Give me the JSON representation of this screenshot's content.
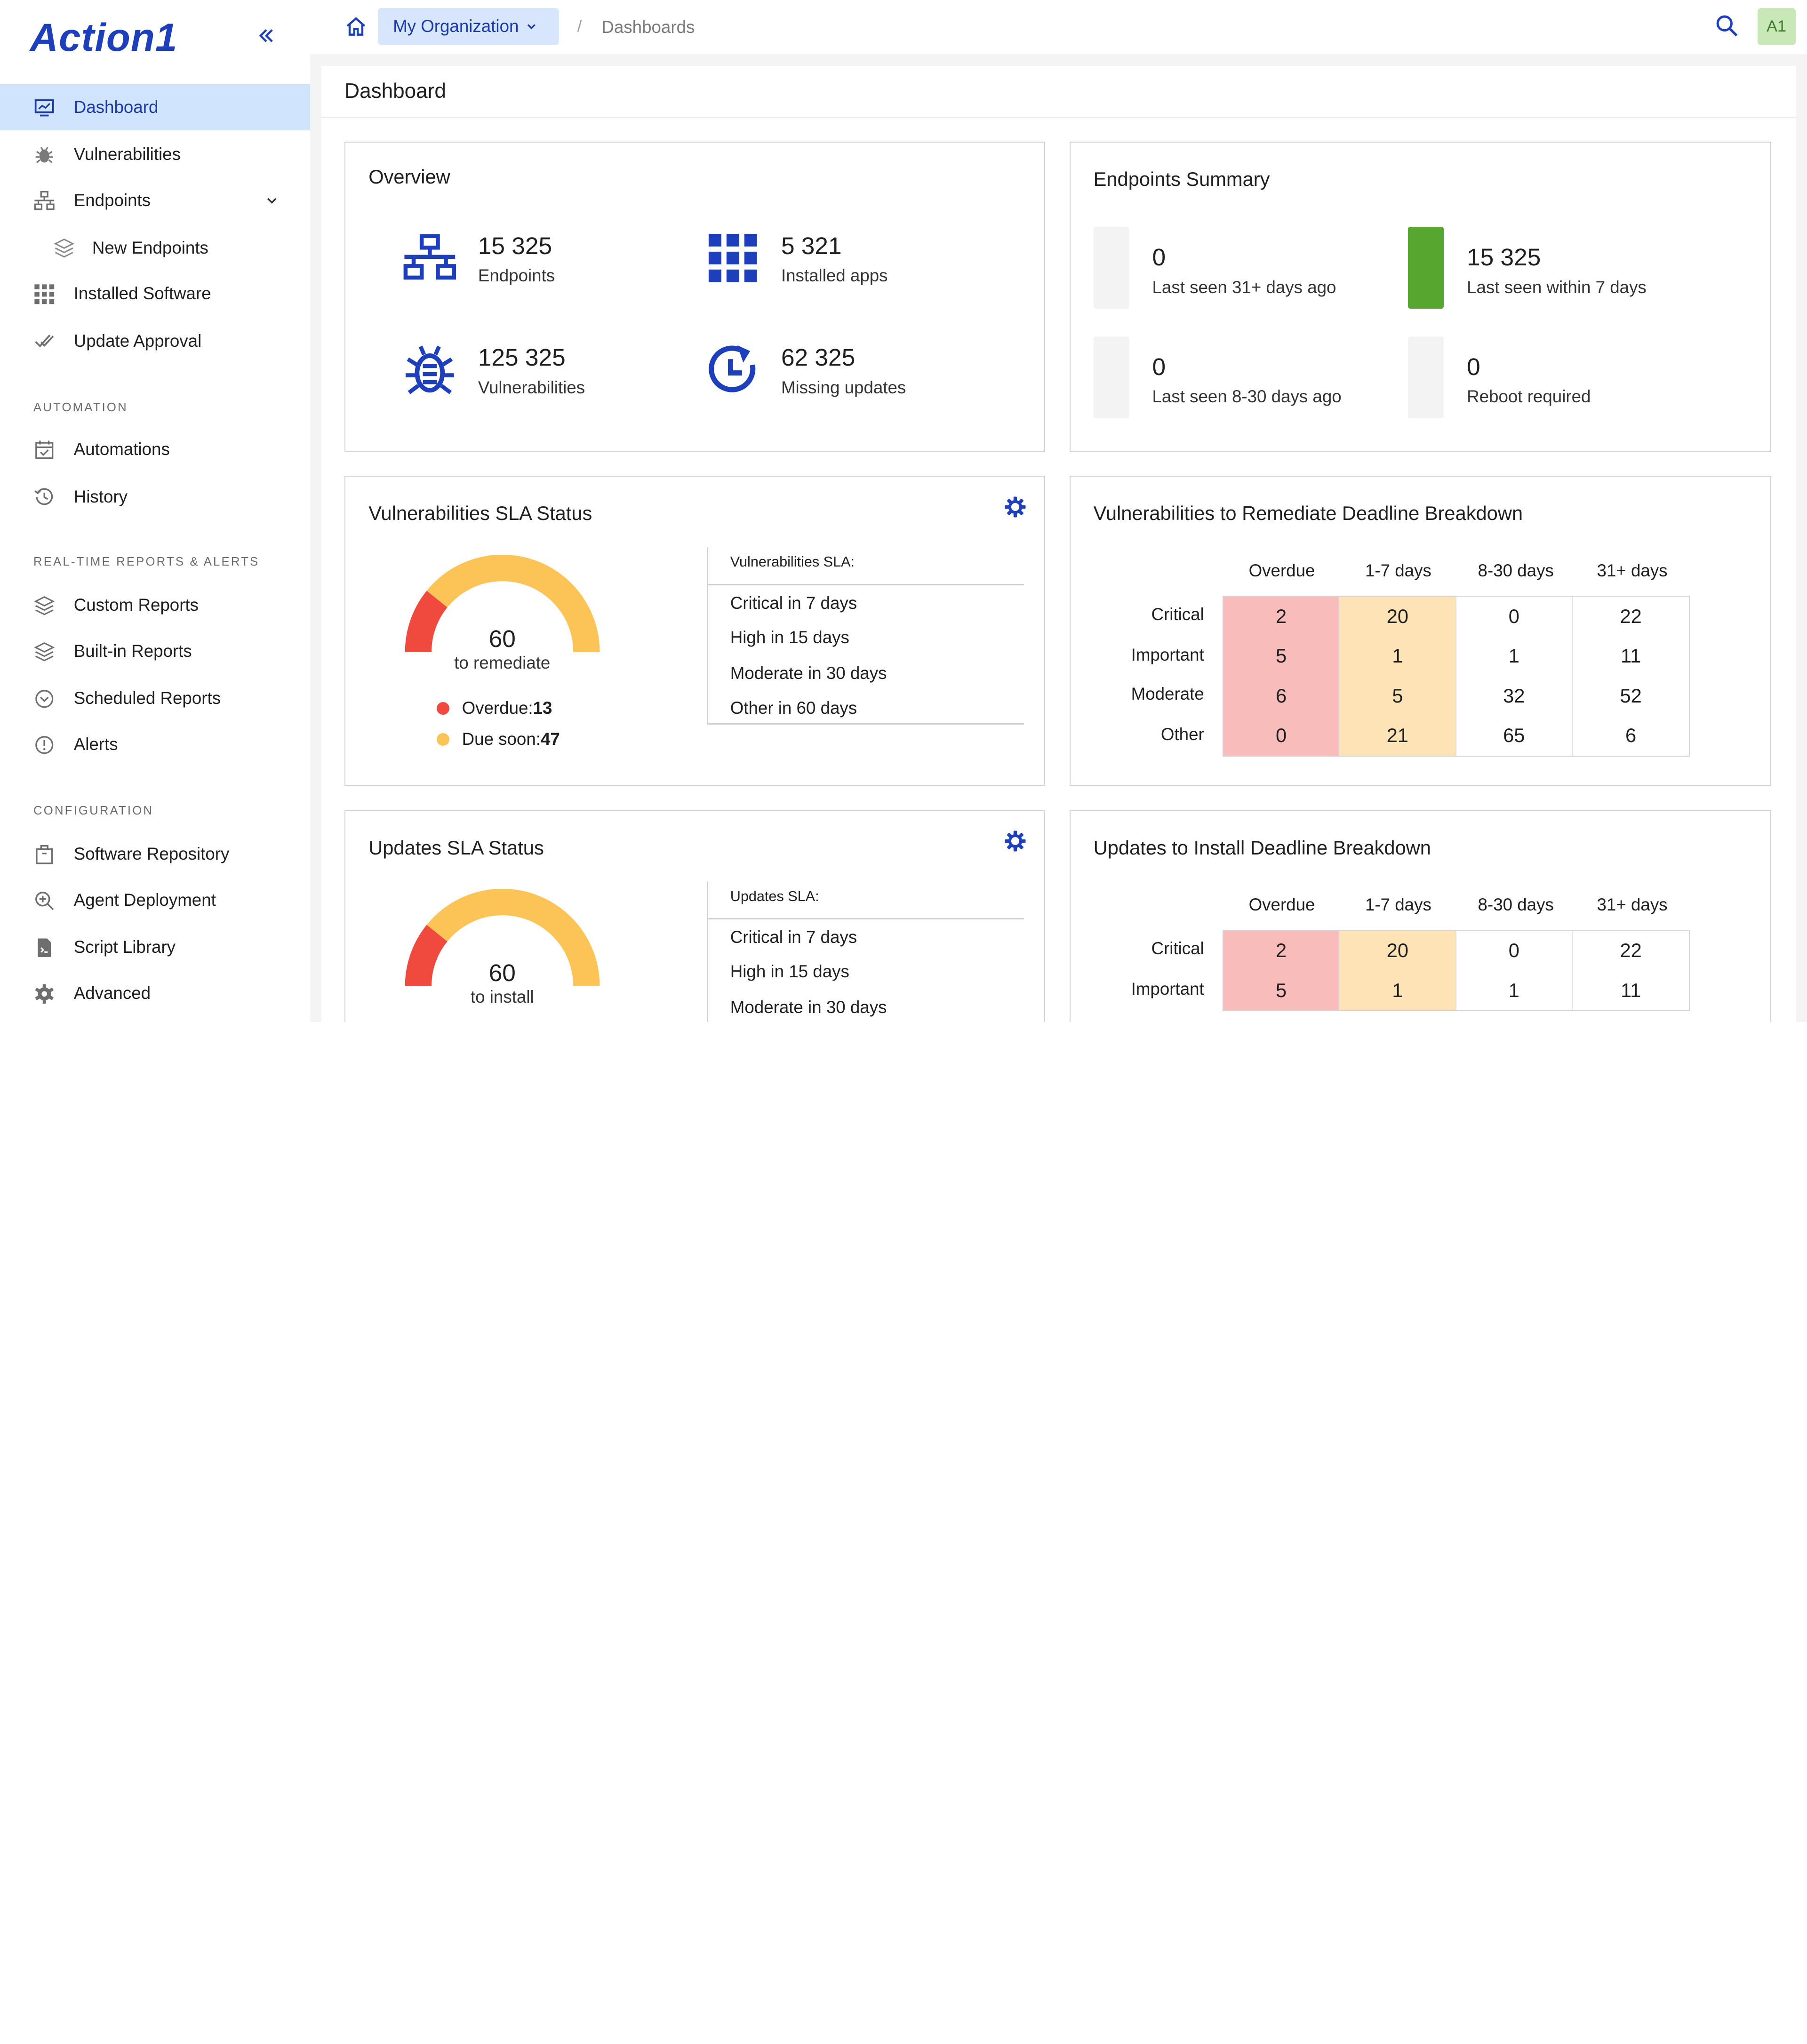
{
  "app": {
    "logo": "Action1"
  },
  "sidebar": {
    "items": [
      {
        "label": "Dashboard",
        "icon": "monitor-icon"
      },
      {
        "label": "Vulnerabilities",
        "icon": "bug-icon"
      },
      {
        "label": "Endpoints",
        "icon": "network-icon"
      },
      {
        "label": "New Endpoints",
        "icon": "layers-icon"
      },
      {
        "label": "Installed Software",
        "icon": "grid-icon"
      },
      {
        "label": "Update Approval",
        "icon": "double-check-icon"
      }
    ],
    "sections": [
      {
        "title": "AUTOMATION",
        "items": [
          {
            "label": "Automations",
            "icon": "calendar-check-icon"
          },
          {
            "label": "History",
            "icon": "history-icon"
          }
        ]
      },
      {
        "title": "REAL-TIME REPORTS & ALERTS",
        "items": [
          {
            "label": "Custom Reports",
            "icon": "layers-icon"
          },
          {
            "label": "Built-in Reports",
            "icon": "layers-icon"
          },
          {
            "label": "Scheduled Reports",
            "icon": "clock-circle-icon"
          },
          {
            "label": "Alerts",
            "icon": "alert-circle-icon"
          }
        ]
      },
      {
        "title": "CONFIGURATION",
        "items": [
          {
            "label": "Software Repository",
            "icon": "package-icon"
          },
          {
            "label": "Agent Deployment",
            "icon": "zoom-plus-icon"
          },
          {
            "label": "Script Library",
            "icon": "script-file-icon"
          },
          {
            "label": "Advanced",
            "icon": "gear-icon"
          }
        ]
      }
    ]
  },
  "topbar": {
    "org": "My Organization",
    "breadcrumb_sep": "/",
    "breadcrumb": "Dashboards",
    "avatar": "A1"
  },
  "page": {
    "title": "Dashboard"
  },
  "overview": {
    "title": "Overview",
    "items": [
      {
        "value": "15 325",
        "label": "Endpoints",
        "icon": "network-icon"
      },
      {
        "value": "5 321",
        "label": "Installed apps",
        "icon": "grid-icon"
      },
      {
        "value": "125 325",
        "label": "Vulnerabilities",
        "icon": "bug-icon"
      },
      {
        "value": "62 325",
        "label": "Missing updates",
        "icon": "clock-refresh-icon"
      }
    ]
  },
  "endpoints_summary": {
    "title": "Endpoints Summary",
    "items": [
      {
        "value": "0",
        "label": "Last seen 31+ days ago"
      },
      {
        "value": "15 325",
        "label": "Last seen within 7 days"
      },
      {
        "value": "0",
        "label": "Last seen 8-30 days ago"
      },
      {
        "value": "0",
        "label": "Reboot required"
      }
    ]
  },
  "vuln_sla": {
    "title": "Vulnerabilities SLA Status",
    "gauge_value": "60",
    "gauge_label": "to remediate",
    "overdue_fraction": 0.2167,
    "legend": [
      {
        "label": "Overdue:",
        "value": "13",
        "color": "#f04a3e"
      },
      {
        "label": "Due soon:",
        "value": "47",
        "color": "#fcc457"
      }
    ],
    "sla_title": "Vulnerabilities SLA:",
    "sla_rows": [
      "Critical in 7 days",
      "High in 15 days",
      "Moderate in 30 days",
      "Other in 60 days"
    ]
  },
  "vuln_breakdown": {
    "title": "Vulnerabilities to Remediate Deadline Breakdown",
    "columns": [
      "Overdue",
      "1-7 days",
      "8-30 days",
      "31+ days"
    ],
    "rows": [
      {
        "label": "Critical",
        "cells": [
          "2",
          "20",
          "0",
          "22"
        ]
      },
      {
        "label": "Important",
        "cells": [
          "5",
          "1",
          "1",
          "11"
        ]
      },
      {
        "label": "Moderate",
        "cells": [
          "6",
          "5",
          "32",
          "52"
        ]
      },
      {
        "label": "Other",
        "cells": [
          "0",
          "21",
          "65",
          "6"
        ]
      }
    ]
  },
  "updates_sla": {
    "title": "Updates SLA Status",
    "gauge_value": "60",
    "gauge_label": "to install",
    "overdue_fraction": 0.2167,
    "sla_title": "Updates SLA:",
    "sla_rows": [
      "Critical in 7 days",
      "High in 15 days",
      "Moderate in 30 days"
    ]
  },
  "updates_breakdown": {
    "title": "Updates to Install Deadline Breakdown",
    "columns": [
      "Overdue",
      "1-7 days",
      "8-30 days",
      "31+ days"
    ],
    "rows": [
      {
        "label": "Critical",
        "cells": [
          "2",
          "20",
          "0",
          "22"
        ]
      },
      {
        "label": "Important",
        "cells": [
          "5",
          "1",
          "1",
          "11"
        ]
      }
    ]
  },
  "colors": {
    "accent": "#1d3fbb",
    "active_bg": "#d1e4fd",
    "green": "#56a630",
    "overdue": "#f04a3e",
    "due_soon": "#fcc457"
  }
}
